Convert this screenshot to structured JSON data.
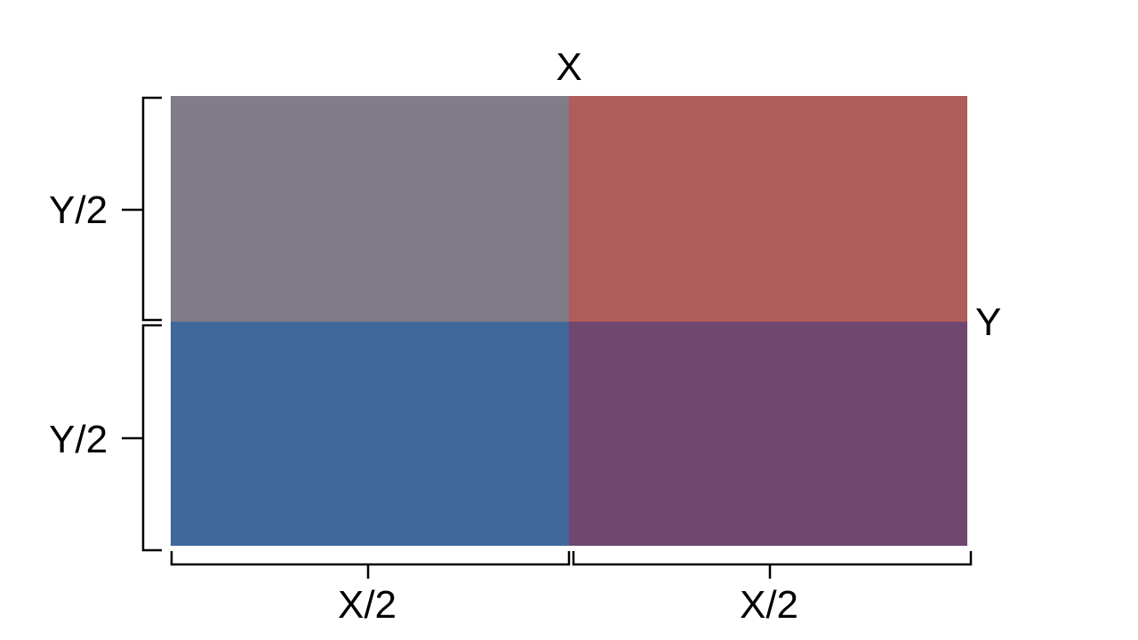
{
  "labels": {
    "x_total": "X",
    "y_total": "Y",
    "y_half_top": "Y/2",
    "y_half_bottom": "Y/2",
    "x_half_left": "X/2",
    "x_half_right": "X/2"
  },
  "colors": {
    "top_left": "#807c88",
    "top_right": "#b05c5a",
    "bottom_left": "#40699a",
    "bottom_right": "#6f4770",
    "bracket": "#000000"
  }
}
